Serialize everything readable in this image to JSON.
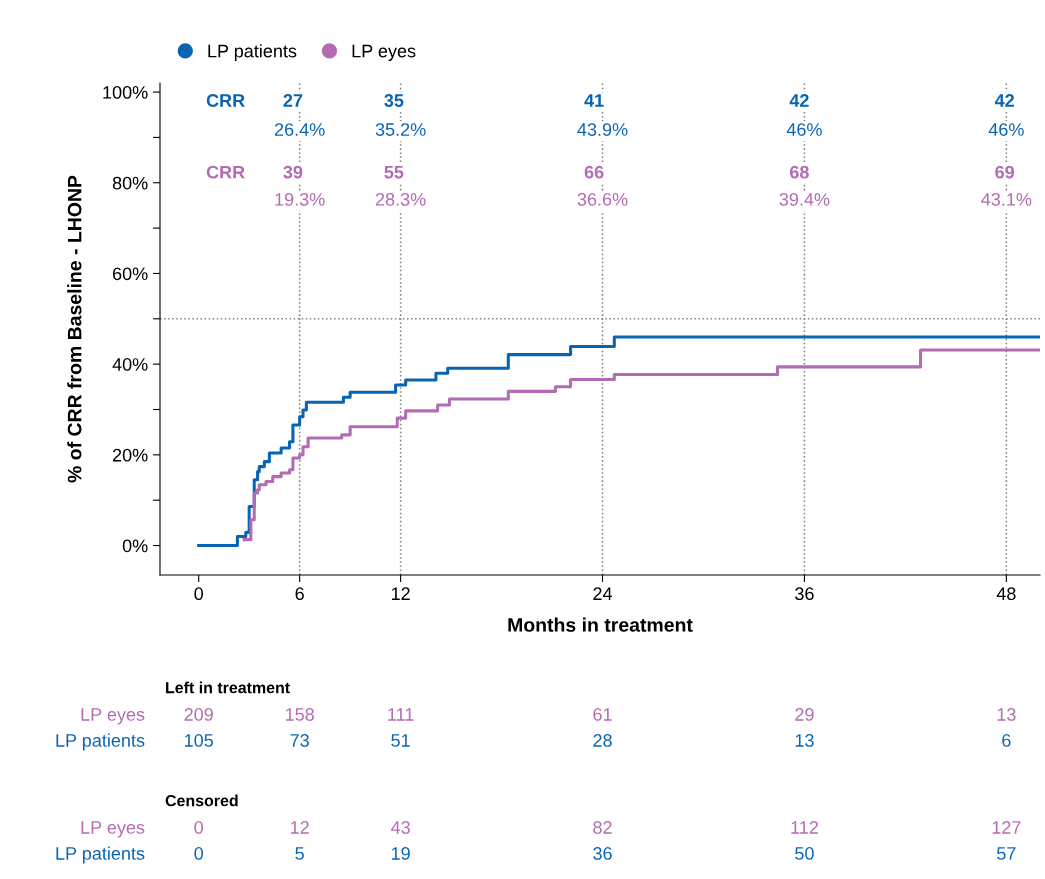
{
  "chart_data": {
    "type": "step",
    "xlabel": "Months in treatment",
    "ylabel": "% of CRR from Baseline - LHONP",
    "xlim": [
      -2.3,
      50
    ],
    "xticks": [
      0,
      6,
      12,
      24,
      36,
      48
    ],
    "ylim": [
      -6.5,
      102
    ],
    "yticks": [
      {
        "value": 0,
        "label": "0%"
      },
      {
        "value": 10,
        "label": null
      },
      {
        "value": 20,
        "label": "20%"
      },
      {
        "value": 30,
        "label": null
      },
      {
        "value": 40,
        "label": "40%"
      },
      {
        "value": 50,
        "label": null
      },
      {
        "value": 60,
        "label": "60%"
      },
      {
        "value": 70,
        "label": null
      },
      {
        "value": 80,
        "label": "80%"
      },
      {
        "value": 90,
        "label": null
      },
      {
        "value": 100,
        "label": "100%"
      }
    ],
    "grid": false,
    "legend": "top left",
    "marker": "none",
    "line_style": "solid",
    "ref_lines": [
      {
        "axis": "y",
        "value": 50,
        "color": "#808080",
        "line_style": "dotted"
      },
      {
        "axis": "x",
        "value": 6,
        "color": "#808080",
        "line_style": "dotted"
      },
      {
        "axis": "x",
        "value": 12,
        "color": "#808080",
        "line_style": "dotted"
      },
      {
        "axis": "x",
        "value": 24,
        "color": "#808080",
        "line_style": "dotted"
      },
      {
        "axis": "x",
        "value": 36,
        "color": "#808080",
        "line_style": "dotted"
      },
      {
        "axis": "x",
        "value": 48,
        "color": "#808080",
        "line_style": "dotted"
      }
    ],
    "series": [
      {
        "name": "LP patients",
        "color": "#0a64b4",
        "x": [
          0,
          2.3,
          2.8,
          3.0,
          3.3,
          3.5,
          3.6,
          3.9,
          4.2,
          4.9,
          5.4,
          5.6,
          6.0,
          6.2,
          6.4,
          8.6,
          9.0,
          11.7,
          12.3,
          14.1,
          14.8,
          18.4,
          22.1,
          24.7,
          50
        ],
        "values": [
          0,
          2,
          2.9,
          8.6,
          14.5,
          16.3,
          17.4,
          18.5,
          20.4,
          21.5,
          22.9,
          26.6,
          28.4,
          29.9,
          31.6,
          32.7,
          33.8,
          35.4,
          36.5,
          38.0,
          39.1,
          42.1,
          43.9,
          46,
          46
        ]
      },
      {
        "name": "LP eyes",
        "color": "#b36bb3",
        "x": [
          2.7,
          3.1,
          3.3,
          3.5,
          3.6,
          4.0,
          4.4,
          4.9,
          5.4,
          5.6,
          6.0,
          6.2,
          6.5,
          8.5,
          9.0,
          11.8,
          12.3,
          14.2,
          14.9,
          18.4,
          21.2,
          22.1,
          24.7,
          34.4,
          42.9,
          50
        ],
        "values": [
          1.3,
          5.7,
          11.6,
          12.3,
          13.4,
          14.1,
          15.2,
          16.0,
          16.7,
          19.3,
          20.0,
          21.8,
          23.7,
          24.4,
          26.2,
          28.1,
          29.7,
          31.0,
          32.3,
          34.0,
          35.0,
          36.6,
          37.7,
          39.4,
          43.1,
          43.1
        ]
      }
    ],
    "annotations": [
      {
        "text": "CRR",
        "x": 1.6,
        "y": 97.8
      },
      {
        "text": "27",
        "x": 5.6,
        "y": 97.8
      },
      {
        "text": "35",
        "x": 11.6,
        "y": 97.8
      },
      {
        "text": "41",
        "x": 23.5,
        "y": 97.8
      },
      {
        "text": "42",
        "x": 35.7,
        "y": 97.8
      },
      {
        "text": "42",
        "x": 47.9,
        "y": 97.8
      },
      {
        "text": "26.4%",
        "x": 6,
        "y": 91.4
      },
      {
        "text": "35.2%",
        "x": 12,
        "y": 91.4
      },
      {
        "text": "43.9%",
        "x": 24,
        "y": 91.4
      },
      {
        "text": "46%",
        "x": 36,
        "y": 91.4
      },
      {
        "text": "46%",
        "x": 48,
        "y": 91.4
      },
      {
        "text": "CRR",
        "x": 1.6,
        "y": 82
      },
      {
        "text": "39",
        "x": 5.6,
        "y": 82
      },
      {
        "text": "55",
        "x": 11.6,
        "y": 82
      },
      {
        "text": "66",
        "x": 23.5,
        "y": 82
      },
      {
        "text": "68",
        "x": 35.7,
        "y": 82
      },
      {
        "text": "69",
        "x": 47.9,
        "y": 82
      },
      {
        "text": "19.3%",
        "x": 6,
        "y": 76
      },
      {
        "text": "28.3%",
        "x": 12,
        "y": 76
      },
      {
        "text": "36.6%",
        "x": 24,
        "y": 76
      },
      {
        "text": "39.4%",
        "x": 36,
        "y": 76
      },
      {
        "text": "43.1%",
        "x": 48,
        "y": 76
      },
      "Left in treatment",
      "LP eyes",
      "209",
      "158",
      "111",
      "61",
      "29",
      "13",
      "LP patients",
      "105",
      "73",
      "51",
      "28",
      "13",
      "6",
      "Censored",
      "LP eyes",
      "0",
      "12",
      "43",
      "82",
      "112",
      "127",
      "LP patients",
      "0",
      "5",
      "19",
      "36",
      "50",
      "57"
    ]
  }
}
